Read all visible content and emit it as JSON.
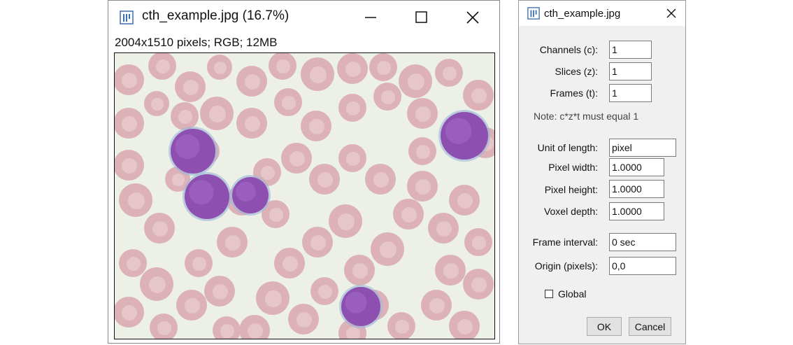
{
  "image_window": {
    "title": "cth_example.jpg (16.7%)",
    "info": "2004x1510 pixels; RGB; 12MB",
    "icons": {
      "app": "imagej-app-icon",
      "minimize": "minimize-icon",
      "maximize": "maximize-icon",
      "close": "close-icon"
    }
  },
  "dialog": {
    "title": "cth_example.jpg",
    "fields": {
      "channels": {
        "label": "Channels (c):",
        "value": "1"
      },
      "slices": {
        "label": "Slices (z):",
        "value": "1"
      },
      "frames": {
        "label": "Frames (t):",
        "value": "1"
      },
      "unit_of_length": {
        "label": "Unit of length:",
        "value": "pixel"
      },
      "pixel_width": {
        "label": "Pixel width:",
        "value": "1.0000"
      },
      "pixel_height": {
        "label": "Pixel height:",
        "value": "1.0000"
      },
      "voxel_depth": {
        "label": "Voxel depth:",
        "value": "1.0000"
      },
      "frame_interval": {
        "label": "Frame interval:",
        "value": "0 sec"
      },
      "origin": {
        "label": "Origin (pixels):",
        "value": "0,0"
      }
    },
    "note": "Note: c*z*t must equal 1",
    "global": {
      "label": "Global",
      "checked": false
    },
    "buttons": {
      "ok": "OK",
      "cancel": "Cancel"
    }
  },
  "colors": {
    "background": "#ecf0e7",
    "red_cell": "#dcb2b8",
    "red_cell_center": "#e9cfd2",
    "lymphocyte": "#8d4fb0",
    "accent_icon": "#3a6fb0"
  }
}
